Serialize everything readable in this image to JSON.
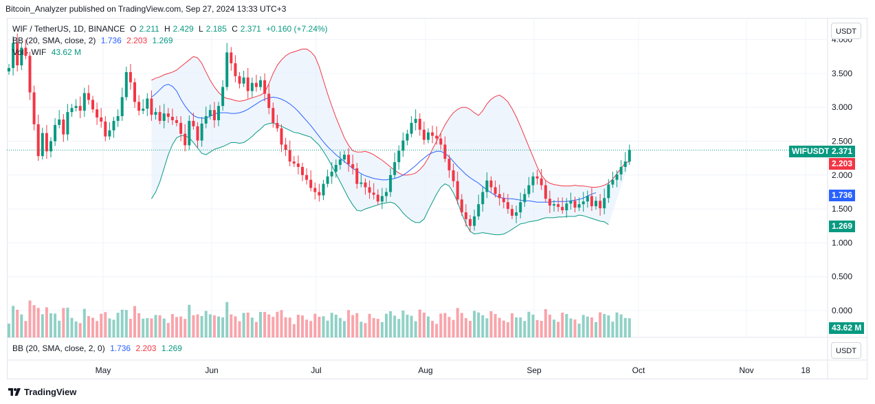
{
  "header": {
    "text": "Bitcoin_Analyzer published on TradingView.com, Sep 27, 2024 13:33 UTC+3"
  },
  "legend": {
    "symbol": "WIF / TetherUS, 1D, BINANCE",
    "o_label": "O",
    "o_value": "2.211",
    "h_label": "H",
    "h_value": "2.429",
    "l_label": "L",
    "l_value": "2.185",
    "c_label": "C",
    "c_value": "2.371",
    "change": "+0.160 (+7.24%)",
    "bb_label": "BB (20, SMA, close, 2)",
    "bb_mid": "1.736",
    "bb_upper": "2.203",
    "bb_lower": "1.269",
    "vol_label": "Vol · WIF",
    "vol_value": "43.62 M"
  },
  "bottom_legend": {
    "label": "BB (20, SMA, close, 2, 0)",
    "mid": "1.736",
    "upper": "2.203",
    "lower": "1.269"
  },
  "unit_button": "USDT",
  "tags": {
    "symbol": "WIFUSDT",
    "last": "2.371",
    "upper": "2.203",
    "mid": "1.736",
    "lower": "1.269",
    "vol": "43.62 M"
  },
  "footer": {
    "brand": "TradingView"
  },
  "colors": {
    "up": "#089981",
    "down": "#f23645",
    "upper_band": "#f23645",
    "mid_band": "#2962ff",
    "lower_band": "#089981",
    "band_fill": "#e3effb"
  },
  "chart_data": {
    "type": "candlestick",
    "symbol": "WIF / TetherUS",
    "interval": "1D",
    "y_axis": {
      "ticks": [
        4.0,
        3.5,
        3.0,
        2.5,
        2.0,
        1.5,
        1.0,
        0.5,
        0.0
      ],
      "tick_labels": [
        "4.000",
        "3.500",
        "3.000",
        "2.500",
        "2.000",
        "1.500",
        "1.000",
        "0.500",
        "0.000"
      ]
    },
    "x_axis": {
      "labels": [
        "May",
        "Jun",
        "Jul",
        "Aug",
        "Sep",
        "Oct",
        "Nov",
        "18"
      ]
    },
    "closes": [
      3.58,
      3.95,
      3.62,
      3.88,
      3.76,
      3.22,
      2.75,
      2.28,
      2.62,
      2.35,
      2.5,
      2.74,
      2.82,
      2.6,
      2.93,
      2.99,
      3.02,
      2.95,
      3.21,
      3.11,
      2.97,
      2.85,
      2.79,
      2.57,
      2.66,
      2.8,
      2.87,
      3.15,
      3.52,
      3.37,
      3.08,
      2.95,
      2.98,
      3.13,
      2.89,
      2.93,
      2.8,
      2.91,
      2.86,
      2.81,
      2.77,
      2.61,
      2.44,
      2.8,
      2.72,
      2.51,
      2.76,
      2.87,
      2.96,
      2.81,
      3.02,
      3.3,
      3.81,
      3.65,
      3.46,
      3.35,
      3.44,
      3.24,
      3.36,
      3.3,
      3.4,
      3.2,
      2.99,
      2.77,
      2.69,
      2.45,
      2.37,
      2.2,
      2.17,
      2.12,
      2.0,
      1.93,
      1.81,
      1.75,
      1.7,
      1.87,
      1.98,
      2.05,
      2.15,
      2.23,
      2.3,
      2.16,
      2.1,
      1.87,
      1.89,
      1.82,
      1.74,
      1.71,
      1.61,
      1.69,
      1.75,
      2.0,
      2.19,
      2.36,
      2.51,
      2.61,
      2.77,
      2.83,
      2.67,
      2.52,
      2.63,
      2.58,
      2.54,
      2.45,
      2.24,
      2.07,
      1.91,
      1.64,
      1.45,
      1.35,
      1.25,
      1.39,
      1.57,
      1.75,
      1.92,
      1.82,
      1.72,
      1.66,
      1.6,
      1.5,
      1.4,
      1.45,
      1.6,
      1.72,
      1.85,
      1.98,
      1.95,
      1.85,
      1.65,
      1.55,
      1.57,
      1.53,
      1.48,
      1.58,
      1.62,
      1.52,
      1.57,
      1.61,
      1.69,
      1.54,
      1.62,
      1.51,
      1.66,
      1.86,
      1.93,
      2.01,
      2.12,
      2.2,
      2.37
    ],
    "bb_upper": [
      3.4,
      3.43,
      3.45,
      3.48,
      3.5,
      3.52,
      3.55,
      3.6,
      3.65,
      3.7,
      3.75,
      3.73,
      3.65,
      3.52,
      3.4,
      3.3,
      3.22,
      3.16,
      3.13,
      3.12,
      3.1,
      3.09,
      3.1,
      3.12,
      3.14,
      3.16,
      3.18,
      3.22,
      3.35,
      3.5,
      3.62,
      3.7,
      3.76,
      3.8,
      3.82,
      3.84,
      3.86,
      3.86,
      3.82,
      3.75,
      3.6,
      3.4,
      3.2,
      3.02,
      2.85,
      2.7,
      2.55,
      2.44,
      2.36,
      2.34,
      2.34,
      2.35,
      2.33,
      2.3,
      2.26,
      2.22,
      2.17,
      2.12,
      2.07,
      2.03,
      2.0,
      2.0,
      2.01,
      2.03,
      2.08,
      2.15,
      2.25,
      2.38,
      2.5,
      2.62,
      2.74,
      2.84,
      2.92,
      2.97,
      3.0,
      3.0,
      2.97,
      2.92,
      2.88,
      2.95,
      3.05,
      3.12,
      3.16,
      3.18,
      3.14,
      3.08,
      2.98,
      2.86,
      2.72,
      2.57,
      2.42,
      2.27,
      2.12,
      2.0,
      1.92,
      1.88,
      1.86,
      1.85,
      1.84,
      1.84,
      1.84,
      1.85,
      1.84,
      1.84,
      1.83,
      1.82,
      1.82,
      1.83,
      1.85,
      1.88,
      1.94,
      2.02,
      2.1,
      2.18,
      2.2
    ],
    "bb_mid": [
      3.15,
      3.2,
      3.26,
      3.32,
      3.34,
      3.31,
      3.24,
      3.12,
      3.02,
      2.94,
      2.88,
      2.85,
      2.84,
      2.84,
      2.87,
      2.9,
      2.92,
      2.92,
      2.92,
      2.91,
      2.91,
      2.92,
      2.94,
      2.97,
      3.01,
      3.05,
      3.09,
      3.12,
      3.14,
      3.15,
      3.14,
      3.12,
      3.09,
      3.05,
      3.0,
      2.94,
      2.87,
      2.8,
      2.73,
      2.65,
      2.57,
      2.49,
      2.42,
      2.36,
      2.3,
      2.25,
      2.2,
      2.15,
      2.1,
      2.06,
      2.02,
      1.99,
      1.97,
      1.95,
      1.94,
      1.93,
      1.93,
      1.94,
      1.95,
      1.97,
      2.0,
      2.04,
      2.09,
      2.14,
      2.2,
      2.25,
      2.3,
      2.33,
      2.35,
      2.35,
      2.32,
      2.27,
      2.2,
      2.13,
      2.07,
      2.01,
      1.96,
      1.92,
      1.88,
      1.83,
      1.78,
      1.74,
      1.7,
      1.67,
      1.66,
      1.65,
      1.65,
      1.64,
      1.63,
      1.62,
      1.62,
      1.61,
      1.6,
      1.6,
      1.6,
      1.6,
      1.61,
      1.61,
      1.61,
      1.61,
      1.62,
      1.63,
      1.64,
      1.66,
      1.69,
      1.72,
      1.74
    ],
    "bb_lower": [
      1.65,
      1.75,
      1.9,
      2.1,
      2.3,
      2.45,
      2.55,
      2.58,
      2.58,
      2.55,
      2.48,
      2.4,
      2.32,
      2.3,
      2.34,
      2.38,
      2.4,
      2.42,
      2.45,
      2.48,
      2.48,
      2.47,
      2.48,
      2.52,
      2.57,
      2.63,
      2.68,
      2.74,
      2.76,
      2.77,
      2.74,
      2.72,
      2.69,
      2.66,
      2.63,
      2.62,
      2.6,
      2.58,
      2.56,
      2.5,
      2.44,
      2.35,
      2.25,
      2.14,
      2.02,
      1.9,
      1.78,
      1.66,
      1.56,
      1.48,
      1.47,
      1.5,
      1.52,
      1.54,
      1.56,
      1.58,
      1.59,
      1.6,
      1.58,
      1.52,
      1.44,
      1.38,
      1.33,
      1.3,
      1.3,
      1.35,
      1.48,
      1.6,
      1.72,
      1.82,
      1.87,
      1.84,
      1.74,
      1.6,
      1.43,
      1.28,
      1.17,
      1.13,
      1.14,
      1.15,
      1.14,
      1.13,
      1.12,
      1.12,
      1.13,
      1.16,
      1.2,
      1.24,
      1.28,
      1.29,
      1.31,
      1.32,
      1.33,
      1.35,
      1.37,
      1.37,
      1.37,
      1.38,
      1.38,
      1.39,
      1.39,
      1.39,
      1.41,
      1.4,
      1.38,
      1.36,
      1.34,
      1.32,
      1.31,
      1.27
    ]
  }
}
